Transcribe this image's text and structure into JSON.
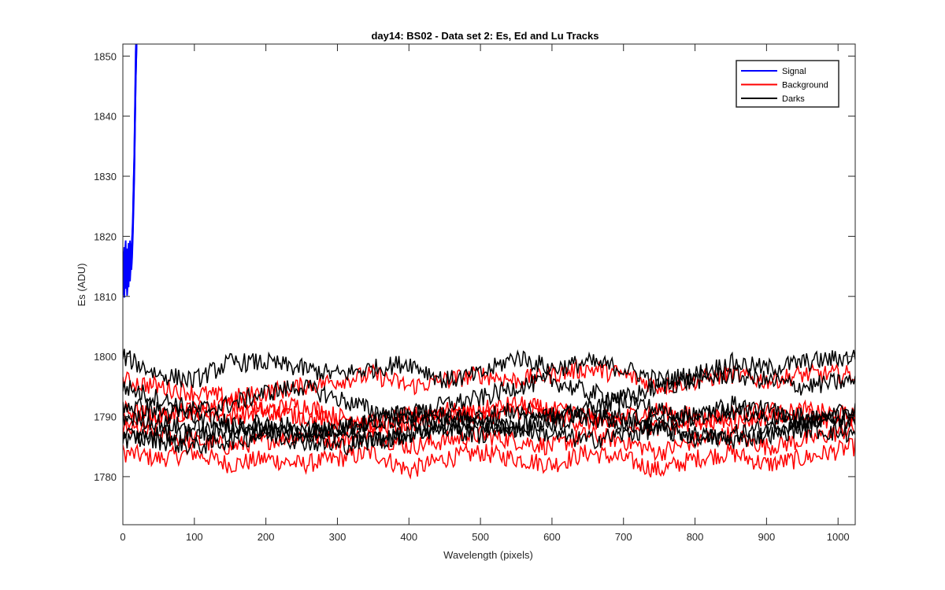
{
  "chart_data": {
    "type": "line",
    "title": "day14: BS02 - Data set 2: Es, Ed and Lu Tracks",
    "xlabel": "Wavelength (pixels)",
    "ylabel": "Es (ADU)",
    "xlim": [
      0,
      1024
    ],
    "ylim": [
      1772,
      1852
    ],
    "xticks": [
      0,
      100,
      200,
      300,
      400,
      500,
      600,
      700,
      800,
      900,
      1000
    ],
    "yticks": [
      1780,
      1790,
      1800,
      1810,
      1820,
      1830,
      1840,
      1850
    ],
    "grid": false,
    "legend_position": "top-right",
    "series": [
      {
        "name": "Signal",
        "color": "#0000ff",
        "traces": [
          {
            "x": [
              0,
              2,
              4,
              6,
              8,
              10,
              12,
              14,
              16,
              18,
              20
            ],
            "y": [
              1812,
              1818,
              1811,
              1815,
              1813,
              1816,
              1814,
              1820,
              1830,
              1845,
              1856
            ]
          },
          {
            "x": [
              0,
              2,
              4,
              6,
              8,
              10,
              12,
              14,
              16,
              18,
              20
            ],
            "y": [
              1815,
              1810,
              1817,
              1812,
              1819,
              1813,
              1818,
              1822,
              1833,
              1848,
              1858
            ]
          },
          {
            "x": [
              0,
              2,
              4,
              6,
              8,
              10,
              12,
              14,
              16,
              18,
              20
            ],
            "y": [
              1817,
              1814,
              1819,
              1810,
              1816,
              1818,
              1815,
              1821,
              1831,
              1846,
              1857
            ]
          },
          {
            "x": [
              0,
              2,
              4,
              6,
              8,
              10,
              12,
              14,
              16,
              18,
              20
            ],
            "y": [
              1811,
              1816,
              1813,
              1818,
              1811,
              1819,
              1817,
              1823,
              1834,
              1850,
              1860
            ]
          }
        ]
      },
      {
        "name": "Background",
        "color": "#ff0000",
        "traces": [
          {
            "x": [
              0,
              50,
              100,
              150,
              200,
              250,
              300,
              350,
              400,
              450,
              500,
              550,
              600,
              650,
              700,
              750,
              800,
              850,
              900,
              950,
              1024
            ],
            "y": [
              1784,
              1783,
              1784,
              1782,
              1783,
              1782,
              1783,
              1784,
              1781,
              1783,
              1784,
              1783,
              1782,
              1784,
              1783,
              1781,
              1783,
              1784,
              1782,
              1783,
              1785
            ]
          },
          {
            "x": [
              0,
              50,
              100,
              150,
              200,
              250,
              300,
              350,
              400,
              450,
              500,
              550,
              600,
              650,
              700,
              750,
              800,
              850,
              900,
              950,
              1024
            ],
            "y": [
              1788,
              1787,
              1786,
              1785,
              1786,
              1787,
              1786,
              1787,
              1785,
              1786,
              1787,
              1786,
              1785,
              1787,
              1786,
              1784,
              1786,
              1787,
              1785,
              1786,
              1788
            ]
          },
          {
            "x": [
              0,
              50,
              100,
              150,
              200,
              250,
              300,
              350,
              400,
              450,
              500,
              550,
              600,
              650,
              700,
              750,
              800,
              850,
              900,
              950,
              1024
            ],
            "y": [
              1791,
              1790,
              1791,
              1790,
              1791,
              1792,
              1790,
              1789,
              1790,
              1791,
              1790,
              1791,
              1790,
              1789,
              1790,
              1791,
              1790,
              1789,
              1790,
              1791,
              1790
            ]
          },
          {
            "x": [
              0,
              50,
              100,
              150,
              200,
              250,
              300,
              350,
              400,
              450,
              500,
              550,
              600,
              650,
              700,
              750,
              800,
              850,
              900,
              950,
              1024
            ],
            "y": [
              1796,
              1795,
              1794,
              1793,
              1794,
              1795,
              1796,
              1797,
              1795,
              1796,
              1797,
              1796,
              1797,
              1798,
              1797,
              1795,
              1796,
              1797,
              1796,
              1797,
              1797
            ]
          },
          {
            "x": [
              0,
              50,
              100,
              150,
              200,
              250,
              300,
              350,
              400,
              450,
              500,
              550,
              600,
              650,
              700,
              750,
              800,
              850,
              900,
              950,
              1024
            ],
            "y": [
              1789,
              1790,
              1791,
              1792,
              1791,
              1790,
              1789,
              1788,
              1789,
              1790,
              1791,
              1792,
              1791,
              1790,
              1789,
              1788,
              1789,
              1790,
              1791,
              1790,
              1789
            ]
          }
        ]
      },
      {
        "name": "Darks",
        "color": "#000000",
        "traces": [
          {
            "x": [
              0,
              50,
              100,
              150,
              200,
              250,
              300,
              350,
              400,
              450,
              500,
              550,
              600,
              650,
              700,
              750,
              800,
              850,
              900,
              950,
              1024
            ],
            "y": [
              1800,
              1797,
              1796,
              1799,
              1799,
              1798,
              1797,
              1798,
              1799,
              1796,
              1797,
              1800,
              1798,
              1799,
              1798,
              1796,
              1797,
              1799,
              1798,
              1799,
              1800
            ]
          },
          {
            "x": [
              0,
              50,
              100,
              150,
              200,
              250,
              300,
              350,
              400,
              450,
              500,
              550,
              600,
              650,
              700,
              750,
              800,
              850,
              900,
              950,
              1024
            ],
            "y": [
              1795,
              1793,
              1791,
              1792,
              1794,
              1795,
              1793,
              1791,
              1790,
              1792,
              1793,
              1795,
              1796,
              1794,
              1793,
              1795,
              1796,
              1797,
              1796,
              1795,
              1796
            ]
          },
          {
            "x": [
              0,
              50,
              100,
              150,
              200,
              250,
              300,
              350,
              400,
              450,
              500,
              550,
              600,
              650,
              700,
              750,
              800,
              850,
              900,
              950,
              1024
            ],
            "y": [
              1790,
              1789,
              1788,
              1787,
              1788,
              1787,
              1788,
              1789,
              1790,
              1788,
              1787,
              1789,
              1790,
              1791,
              1790,
              1789,
              1790,
              1791,
              1790,
              1789,
              1791
            ]
          },
          {
            "x": [
              0,
              50,
              100,
              150,
              200,
              250,
              300,
              350,
              400,
              450,
              500,
              550,
              600,
              650,
              700,
              750,
              800,
              850,
              900,
              950,
              1024
            ],
            "y": [
              1787,
              1786,
              1785,
              1786,
              1787,
              1786,
              1785,
              1786,
              1787,
              1788,
              1789,
              1788,
              1787,
              1786,
              1787,
              1788,
              1787,
              1786,
              1787,
              1788,
              1787
            ]
          },
          {
            "x": [
              0,
              50,
              100,
              150,
              200,
              250,
              300,
              350,
              400,
              450,
              500,
              550,
              600,
              650,
              700,
              750,
              800,
              850,
              900,
              950,
              1024
            ],
            "y": [
              1786,
              1787,
              1787,
              1788,
              1789,
              1788,
              1787,
              1786,
              1787,
              1789,
              1790,
              1791,
              1790,
              1791,
              1793,
              1791,
              1790,
              1792,
              1791,
              1790,
              1789
            ]
          },
          {
            "x": [
              0,
              50,
              100,
              150,
              200,
              250,
              300,
              350,
              400,
              450,
              500,
              550,
              600,
              650,
              700,
              750,
              800,
              850,
              900,
              950,
              1024
            ],
            "y": [
              1792,
              1791,
              1790,
              1789,
              1788,
              1787,
              1788,
              1789,
              1791,
              1790,
              1789,
              1788,
              1789,
              1790,
              1789,
              1788,
              1786,
              1787,
              1788,
              1789,
              1790
            ]
          }
        ]
      }
    ]
  }
}
